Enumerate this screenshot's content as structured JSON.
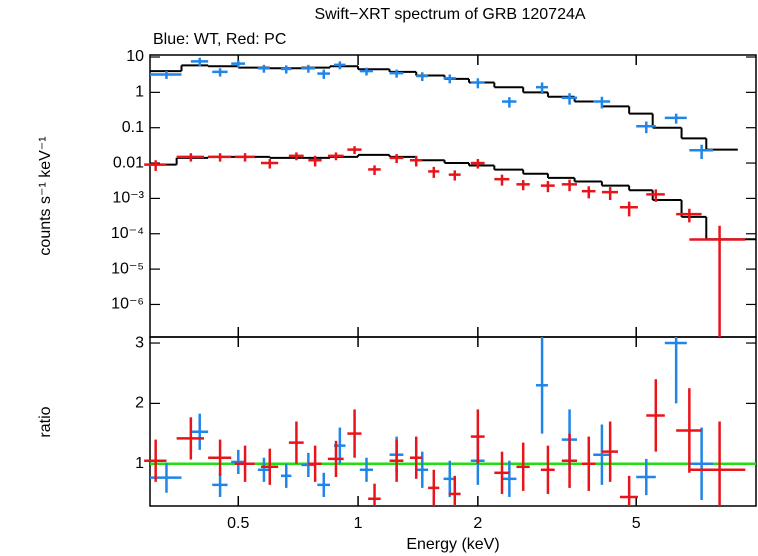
{
  "chart_data": [
    {
      "type": "scatter",
      "title": "Swift−XRT spectrum of GRB 120724A",
      "subtitle": "Blue: WT, Red: PC",
      "y_label": "counts s⁻¹ keV⁻¹",
      "xscale": "log",
      "yscale": "log",
      "xlim": [
        0.3,
        10
      ],
      "ylim": [
        1.2e-07,
        11.4
      ],
      "yticks": [
        10,
        1,
        0.1,
        0.01,
        {
          "value": 0.001,
          "label": "10⁻³"
        },
        {
          "value": 0.0001,
          "label": "10⁻⁴"
        },
        {
          "value": 1e-05,
          "label": "10⁻⁵"
        },
        {
          "value": 1e-06,
          "label": "10⁻⁶"
        }
      ],
      "series": [
        {
          "color": "#1f86e8",
          "x": [
            0.33,
            0.4,
            0.45,
            0.5,
            0.58,
            0.66,
            0.75,
            0.82,
            0.9,
            1.05,
            1.25,
            1.45,
            1.7,
            2.0,
            2.4,
            2.9,
            3.4,
            4.1,
            5.3,
            6.3,
            7.3
          ],
          "xerr": [
            0.03,
            0.02,
            0.02,
            0.02,
            0.02,
            0.02,
            0.03,
            0.03,
            0.03,
            0.04,
            0.05,
            0.05,
            0.06,
            0.08,
            0.1,
            0.1,
            0.15,
            0.2,
            0.3,
            0.4,
            0.5
          ],
          "values": [
            3.2,
            7.5,
            3.8,
            6.5,
            4.8,
            4.6,
            4.8,
            3.4,
            6,
            4,
            3.5,
            2.9,
            2.5,
            1.9,
            0.55,
            1.4,
            0.7,
            0.55,
            0.11,
            0.19,
            0.023
          ],
          "yerr": [
            0.8,
            2,
            1,
            1.5,
            1.2,
            1.2,
            1.2,
            1,
            1.5,
            1,
            0.9,
            0.8,
            0.7,
            0.6,
            0.18,
            0.5,
            0.25,
            0.2,
            0.04,
            0.06,
            0.01
          ],
          "model_bins": [
            0.3,
            0.36,
            0.42,
            0.5,
            0.6,
            0.72,
            0.85,
            1.0,
            1.2,
            1.4,
            1.65,
            1.9,
            2.2,
            2.6,
            3.0,
            3.5,
            4.1,
            4.8,
            5.5,
            6.5,
            7.5,
            9.0
          ],
          "model_values": [
            4,
            5.8,
            5.5,
            5,
            4.8,
            5,
            5.5,
            4.5,
            3.8,
            3,
            2.4,
            1.9,
            1.4,
            1.0,
            0.75,
            0.55,
            0.4,
            0.25,
            0.1,
            0.05,
            0.024
          ]
        },
        {
          "color": "#e8141a",
          "x": [
            0.31,
            0.38,
            0.45,
            0.52,
            0.6,
            0.7,
            0.78,
            0.88,
            0.98,
            1.1,
            1.25,
            1.4,
            1.55,
            1.75,
            2.0,
            2.3,
            2.6,
            3.0,
            3.4,
            3.8,
            4.3,
            4.8,
            5.6,
            6.8,
            8.1
          ],
          "xerr": [
            0.02,
            0.03,
            0.03,
            0.03,
            0.03,
            0.03,
            0.03,
            0.04,
            0.04,
            0.04,
            0.05,
            0.05,
            0.05,
            0.06,
            0.08,
            0.1,
            0.1,
            0.12,
            0.15,
            0.15,
            0.2,
            0.25,
            0.3,
            0.5,
            1.3
          ],
          "values": [
            0.009,
            0.015,
            0.015,
            0.015,
            0.01,
            0.016,
            0.012,
            0.016,
            0.024,
            0.0066,
            0.014,
            0.012,
            0.0058,
            0.0047,
            0.01,
            0.0035,
            0.0025,
            0.0023,
            0.0025,
            0.0016,
            0.0015,
            0.00056,
            0.0013,
            0.00036,
            6.9e-05
          ],
          "yerr": [
            0.003,
            0.004,
            0.004,
            0.004,
            0.003,
            0.004,
            0.004,
            0.004,
            0.006,
            0.002,
            0.004,
            0.004,
            0.002,
            0.0015,
            0.003,
            0.0012,
            0.0008,
            0.0008,
            0.0009,
            0.0006,
            0.0006,
            0.00025,
            0.0005,
            0.00015,
            0.0001
          ],
          "model_bins": [
            0.3,
            0.35,
            0.42,
            0.5,
            0.6,
            0.72,
            0.85,
            1.0,
            1.2,
            1.4,
            1.65,
            1.9,
            2.2,
            2.6,
            3.0,
            3.5,
            4.1,
            4.8,
            5.5,
            6.5,
            7.5,
            10
          ],
          "model_values": [
            0.009,
            0.014,
            0.015,
            0.015,
            0.014,
            0.014,
            0.015,
            0.017,
            0.015,
            0.012,
            0.01,
            0.0085,
            0.0065,
            0.005,
            0.0038,
            0.003,
            0.0023,
            0.0017,
            0.0009,
            0.0003,
            7e-05
          ]
        }
      ]
    },
    {
      "type": "scatter",
      "x_label": "Energy (keV)",
      "y_label": "ratio",
      "xscale": "log",
      "xlim": [
        0.3,
        10
      ],
      "ylim": [
        0.3,
        3.1
      ],
      "xticks": [
        0.5,
        1,
        2,
        5
      ],
      "yticks": [
        1,
        2,
        3
      ],
      "reference": 1,
      "reference_color": "#22dd11",
      "series": [
        {
          "color": "#1f86e8",
          "x": [
            0.33,
            0.4,
            0.45,
            0.5,
            0.58,
            0.66,
            0.75,
            0.82,
            0.9,
            1.05,
            1.25,
            1.45,
            1.7,
            2.0,
            2.4,
            2.9,
            3.4,
            4.1,
            5.3,
            6.3,
            7.3
          ],
          "xerr": [
            0.03,
            0.02,
            0.02,
            0.02,
            0.02,
            0.02,
            0.03,
            0.03,
            0.03,
            0.04,
            0.05,
            0.05,
            0.06,
            0.08,
            0.1,
            0.1,
            0.15,
            0.2,
            0.3,
            0.4,
            0.5
          ],
          "values": [
            0.77,
            1.53,
            0.65,
            1.03,
            0.9,
            0.8,
            0.98,
            0.65,
            1.3,
            0.9,
            1.15,
            0.9,
            0.75,
            1.05,
            0.75,
            2.3,
            1.4,
            1.15,
            0.78,
            3.0,
            1.0
          ],
          "yerr": [
            0.25,
            0.3,
            0.2,
            0.2,
            0.2,
            0.2,
            0.2,
            0.2,
            0.3,
            0.2,
            0.3,
            0.3,
            0.3,
            0.4,
            0.3,
            0.8,
            0.5,
            0.5,
            0.3,
            1.0,
            0.6
          ]
        },
        {
          "color": "#e8141a",
          "x": [
            0.31,
            0.38,
            0.45,
            0.52,
            0.6,
            0.7,
            0.78,
            0.88,
            0.98,
            1.1,
            1.25,
            1.4,
            1.55,
            1.75,
            2.0,
            2.3,
            2.6,
            3.0,
            3.4,
            3.8,
            4.3,
            4.8,
            5.6,
            6.8,
            8.1
          ],
          "xerr": [
            0.02,
            0.03,
            0.03,
            0.03,
            0.03,
            0.03,
            0.03,
            0.04,
            0.04,
            0.04,
            0.05,
            0.05,
            0.05,
            0.06,
            0.08,
            0.1,
            0.1,
            0.12,
            0.15,
            0.15,
            0.2,
            0.25,
            0.3,
            0.5,
            1.3
          ],
          "values": [
            1.05,
            1.42,
            1.1,
            1.0,
            0.95,
            1.35,
            1.0,
            1.08,
            1.5,
            0.42,
            1.05,
            1.1,
            0.6,
            0.5,
            1.45,
            0.85,
            0.95,
            0.9,
            1.05,
            1.0,
            1.2,
            0.45,
            1.8,
            1.55,
            0.9
          ],
          "yerr": [
            0.35,
            0.35,
            0.3,
            0.3,
            0.3,
            0.35,
            0.3,
            0.3,
            0.4,
            0.25,
            0.35,
            0.35,
            0.3,
            0.3,
            0.45,
            0.35,
            0.4,
            0.4,
            0.45,
            0.45,
            0.5,
            0.35,
            0.6,
            0.7,
            0.8
          ]
        }
      ]
    }
  ]
}
